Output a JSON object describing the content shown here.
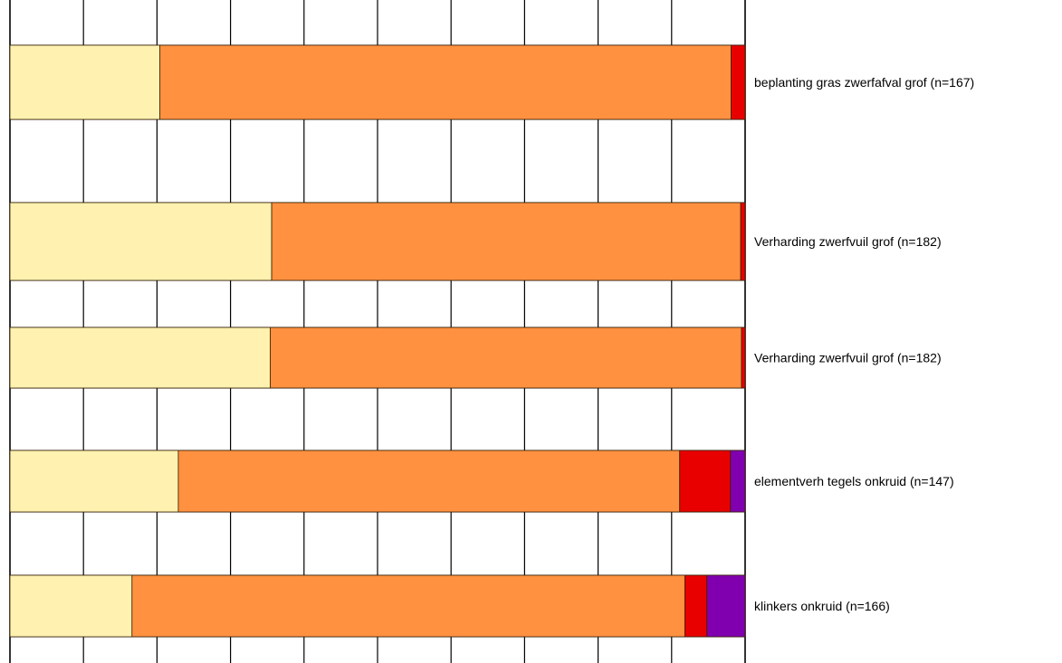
{
  "chart_data": {
    "type": "bar",
    "orientation": "horizontal",
    "stacked": true,
    "percent_stacked": true,
    "xlim": [
      0,
      100
    ],
    "grid": "vertical lines every 10%",
    "categories": [
      "beplanting gras zwerfafval grof (n=167)",
      "Verharding zwerfvuil grof (n=182)",
      "Verharding zwerfvuil grof (n=182)",
      "elementverh tegels onkruid (n=147)",
      "klinkers onkruid (n=166)"
    ],
    "series": [
      {
        "color": "#FFF2B0",
        "values": [
          20.4,
          35.6,
          35.4,
          22.9,
          16.6
        ]
      },
      {
        "color": "#FF9140",
        "values": [
          77.7,
          63.8,
          64.1,
          68.2,
          75.2
        ]
      },
      {
        "color": "#E80000",
        "values": [
          1.9,
          0.6,
          0.5,
          6.9,
          3.0
        ]
      },
      {
        "color": "#8000B0",
        "values": [
          0.0,
          0.0,
          0.0,
          2.0,
          5.2
        ]
      }
    ]
  }
}
